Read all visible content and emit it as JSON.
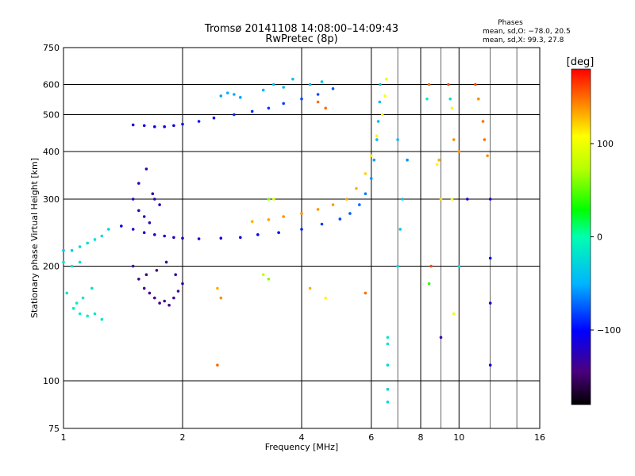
{
  "chart_data": {
    "type": "scatter",
    "title": "Tromsø 20141108 14:08:00–14:09:43",
    "subtitle": "RwPretec (8p)",
    "xlabel": "Frequency [MHz]",
    "ylabel": "Stationary phase Virtual Height [km]",
    "x_scale": "log",
    "y_scale": "log",
    "xlim": [
      1,
      16
    ],
    "ylim": [
      75,
      750
    ],
    "x_ticks": [
      1,
      2,
      4,
      6,
      8,
      10,
      16
    ],
    "x_tick_labels": [
      "1",
      "2",
      "4",
      "6",
      "8",
      "10",
      "16"
    ],
    "y_ticks": [
      75,
      100,
      200,
      300,
      400,
      500,
      600,
      750
    ],
    "y_tick_labels": [
      "75",
      "100",
      "200",
      "300",
      "400",
      "500",
      "600",
      "750"
    ],
    "grid": true,
    "stats": {
      "heading": "Phases",
      "line_o": "mean, sd,O: −78.0, 20.5",
      "line_x": "mean, sd,X:  99.3, 27.8"
    },
    "colorbar": {
      "label": "[deg]",
      "range": [
        -180,
        180
      ],
      "ticks": [
        100,
        0,
        -100
      ],
      "tick_labels": [
        "100",
        "0",
        "−100"
      ]
    },
    "series": [
      {
        "values": [
          [
            1.0,
            220,
            -40
          ],
          [
            1.05,
            220,
            -30
          ],
          [
            1.1,
            225,
            -25
          ],
          [
            1.15,
            230,
            -20
          ],
          [
            1.2,
            235,
            -20
          ],
          [
            1.25,
            240,
            -25
          ],
          [
            1.3,
            250,
            -30
          ],
          [
            1.0,
            205,
            -20
          ],
          [
            1.05,
            200,
            -15
          ],
          [
            1.1,
            205,
            -20
          ],
          [
            1.02,
            170,
            -20
          ],
          [
            1.06,
            155,
            -15
          ],
          [
            1.1,
            150,
            -10
          ],
          [
            1.15,
            148,
            -10
          ],
          [
            1.2,
            150,
            -15
          ],
          [
            1.25,
            145,
            -15
          ],
          [
            1.08,
            160,
            -10
          ],
          [
            1.12,
            165,
            -15
          ],
          [
            1.18,
            175,
            -20
          ]
        ]
      },
      {
        "values": [
          [
            1.4,
            255,
            -105
          ],
          [
            1.5,
            250,
            -110
          ],
          [
            1.6,
            245,
            -115
          ],
          [
            1.7,
            242,
            -115
          ],
          [
            1.8,
            240,
            -118
          ],
          [
            1.9,
            238,
            -120
          ],
          [
            2.0,
            237,
            -120
          ],
          [
            2.2,
            236,
            -118
          ],
          [
            2.5,
            237,
            -115
          ],
          [
            2.8,
            238,
            -110
          ],
          [
            3.1,
            242,
            -105
          ],
          [
            3.5,
            245,
            -100
          ],
          [
            4.0,
            250,
            -92
          ],
          [
            4.5,
            258,
            -85
          ],
          [
            5.0,
            266,
            -80
          ],
          [
            5.3,
            275,
            -75
          ],
          [
            5.6,
            290,
            -70
          ],
          [
            5.8,
            310,
            -65
          ],
          [
            6.0,
            340,
            -60
          ],
          [
            6.1,
            380,
            -55
          ],
          [
            6.2,
            430,
            -50
          ],
          [
            6.25,
            480,
            -48
          ],
          [
            6.3,
            540,
            -45
          ],
          [
            6.32,
            600,
            -45
          ],
          [
            1.5,
            300,
            -120
          ],
          [
            1.55,
            280,
            -125
          ],
          [
            1.6,
            270,
            -125
          ],
          [
            1.65,
            260,
            -128
          ],
          [
            1.7,
            300,
            -128
          ],
          [
            1.55,
            330,
            -130
          ],
          [
            1.62,
            360,
            -130
          ],
          [
            1.68,
            310,
            -130
          ],
          [
            1.75,
            290,
            -125
          ]
        ]
      },
      {
        "values": [
          [
            1.5,
            200,
            -135
          ],
          [
            1.55,
            185,
            -140
          ],
          [
            1.6,
            175,
            -140
          ],
          [
            1.65,
            170,
            -138
          ],
          [
            1.7,
            165,
            -140
          ],
          [
            1.75,
            160,
            -140
          ],
          [
            1.8,
            162,
            -138
          ],
          [
            1.85,
            158,
            -140
          ],
          [
            1.9,
            165,
            -135
          ],
          [
            1.95,
            172,
            -135
          ],
          [
            2.0,
            180,
            -130
          ],
          [
            1.62,
            190,
            -140
          ],
          [
            1.72,
            195,
            -138
          ],
          [
            1.82,
            205,
            -135
          ],
          [
            1.92,
            190,
            -135
          ]
        ]
      },
      {
        "values": [
          [
            1.5,
            470,
            -110
          ],
          [
            1.6,
            468,
            -110
          ],
          [
            1.7,
            465,
            -108
          ],
          [
            1.8,
            465,
            -108
          ],
          [
            1.9,
            468,
            -105
          ],
          [
            2.0,
            472,
            -102
          ],
          [
            2.2,
            480,
            -98
          ],
          [
            2.4,
            490,
            -95
          ],
          [
            2.7,
            500,
            -90
          ],
          [
            3.0,
            510,
            -88
          ],
          [
            3.3,
            520,
            -85
          ],
          [
            3.6,
            535,
            -82
          ],
          [
            4.0,
            550,
            -80
          ],
          [
            4.4,
            565,
            -78
          ],
          [
            4.8,
            585,
            -76
          ]
        ]
      },
      {
        "values": [
          [
            2.5,
            560,
            -55
          ],
          [
            2.6,
            570,
            -50
          ],
          [
            2.7,
            565,
            -52
          ],
          [
            2.8,
            555,
            -55
          ],
          [
            3.2,
            580,
            -50
          ],
          [
            3.4,
            600,
            -45
          ],
          [
            3.6,
            590,
            -45
          ],
          [
            3.8,
            620,
            -40
          ],
          [
            4.2,
            600,
            -45
          ],
          [
            4.5,
            610,
            -40
          ]
        ]
      },
      {
        "values": [
          [
            3.0,
            262,
            130
          ],
          [
            3.3,
            265,
            135
          ],
          [
            3.6,
            270,
            140
          ],
          [
            4.0,
            275,
            140
          ],
          [
            4.4,
            282,
            138
          ],
          [
            4.8,
            290,
            135
          ],
          [
            5.2,
            300,
            135
          ],
          [
            5.5,
            320,
            130
          ],
          [
            5.8,
            350,
            120
          ],
          [
            6.0,
            390,
            115
          ],
          [
            6.2,
            440,
            110
          ],
          [
            6.4,
            500,
            105
          ],
          [
            6.5,
            560,
            105
          ],
          [
            6.55,
            620,
            100
          ],
          [
            4.6,
            520,
            150
          ],
          [
            4.4,
            540,
            150
          ]
        ]
      },
      {
        "values": [
          [
            2.45,
            175,
            130
          ],
          [
            2.45,
            110,
            150
          ],
          [
            2.5,
            165,
            140
          ],
          [
            3.2,
            190,
            80
          ],
          [
            3.3,
            185,
            60
          ],
          [
            3.3,
            300,
            60
          ],
          [
            3.4,
            300,
            90
          ],
          [
            4.2,
            175,
            130
          ],
          [
            4.6,
            165,
            110
          ],
          [
            5.8,
            170,
            150
          ]
        ]
      },
      {
        "values": [
          [
            6.6,
            88,
            -25
          ],
          [
            6.6,
            95,
            -30
          ],
          [
            6.6,
            110,
            -25
          ],
          [
            6.6,
            125,
            -20
          ],
          [
            6.6,
            130,
            -15
          ],
          [
            7.0,
            200,
            -30
          ],
          [
            7.1,
            250,
            -40
          ],
          [
            7.2,
            300,
            -40
          ],
          [
            7.0,
            430,
            -50
          ],
          [
            7.4,
            380,
            -60
          ]
        ]
      },
      {
        "values": [
          [
            8.4,
            600,
            150
          ],
          [
            8.3,
            550,
            -10
          ],
          [
            8.4,
            180,
            40
          ],
          [
            8.5,
            200,
            160
          ],
          [
            8.8,
            370,
            110
          ],
          [
            8.9,
            380,
            130
          ],
          [
            9.0,
            300,
            120
          ],
          [
            9.0,
            130,
            -130
          ],
          [
            9.4,
            600,
            160
          ],
          [
            9.5,
            550,
            -20
          ],
          [
            9.6,
            520,
            100
          ],
          [
            9.7,
            430,
            140
          ],
          [
            9.6,
            300,
            100
          ],
          [
            9.7,
            150,
            100
          ],
          [
            10.0,
            200,
            -30
          ],
          [
            10.0,
            400,
            140
          ],
          [
            10.5,
            300,
            -120
          ],
          [
            11.0,
            600,
            160
          ],
          [
            11.2,
            550,
            140
          ],
          [
            11.5,
            480,
            150
          ],
          [
            11.6,
            430,
            150
          ],
          [
            11.8,
            390,
            140
          ],
          [
            12.0,
            300,
            -110
          ],
          [
            12.0,
            210,
            -100
          ],
          [
            12.0,
            160,
            -120
          ],
          [
            12.0,
            110,
            -110
          ]
        ]
      }
    ]
  }
}
